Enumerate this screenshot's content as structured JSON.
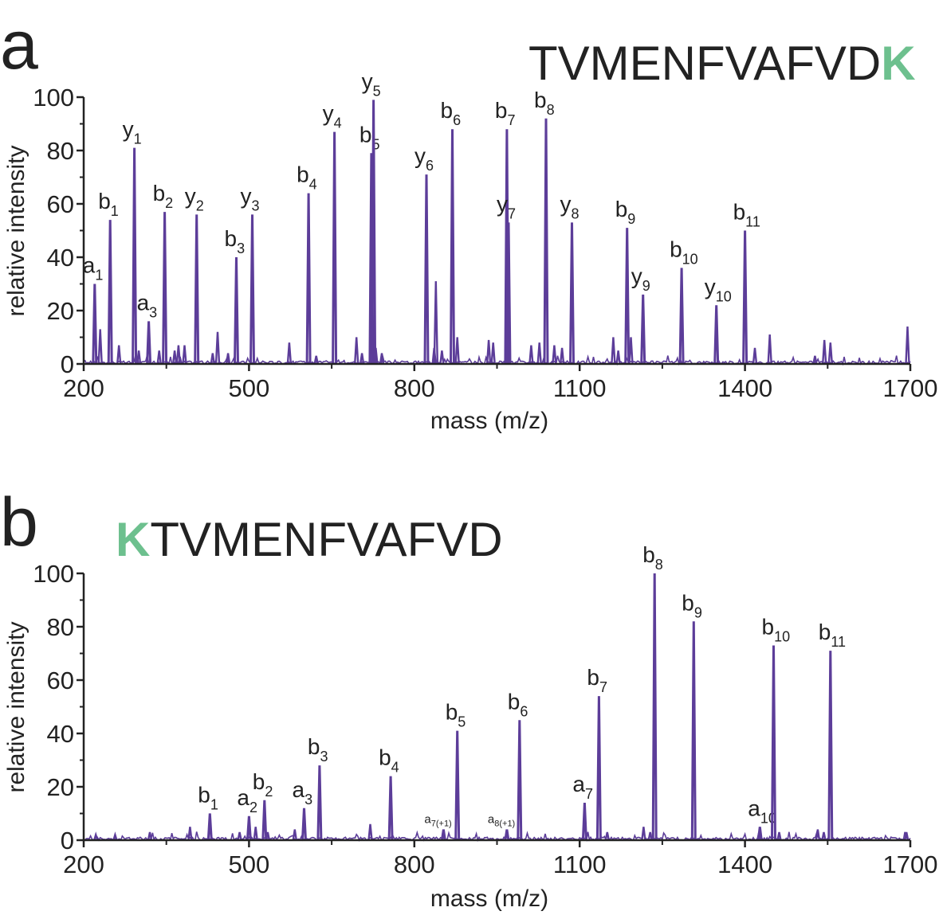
{
  "chart_data": [
    {
      "panel_label": "a",
      "type": "line",
      "peptide_sequence": {
        "prefix": "TVMENFVAFVD",
        "highlight": "K",
        "suffix": ""
      },
      "xlabel": "mass (m/z)",
      "ylabel": "relative intensity",
      "xlim": [
        200,
        1700
      ],
      "ylim": [
        0,
        100
      ],
      "x_ticks": [
        "200",
        "500",
        "800",
        "1100",
        "1400",
        "1700"
      ],
      "y_ticks": [
        "0",
        "20",
        "40",
        "60",
        "80",
        "100"
      ],
      "series_color": "#5c3d99",
      "highlight_color": "#6dc08e",
      "labeled_peaks": [
        {
          "ion": "a",
          "sub": "1",
          "x": 220,
          "y": 30
        },
        {
          "ion": "b",
          "sub": "1",
          "x": 248,
          "y": 54
        },
        {
          "ion": "y",
          "sub": "1",
          "x": 292,
          "y": 81
        },
        {
          "ion": "a",
          "sub": "3",
          "x": 318,
          "y": 16
        },
        {
          "ion": "b",
          "sub": "2",
          "x": 347,
          "y": 57
        },
        {
          "ion": "y",
          "sub": "2",
          "x": 405,
          "y": 56
        },
        {
          "ion": "b",
          "sub": "3",
          "x": 477,
          "y": 40
        },
        {
          "ion": "y",
          "sub": "3",
          "x": 506,
          "y": 56
        },
        {
          "ion": "b",
          "sub": "4",
          "x": 608,
          "y": 64
        },
        {
          "ion": "y",
          "sub": "4",
          "x": 655,
          "y": 87
        },
        {
          "ion": "b",
          "sub": "5",
          "x": 722,
          "y": 79
        },
        {
          "ion": "y",
          "sub": "5",
          "x": 726,
          "y": 99
        },
        {
          "ion": "y",
          "sub": "6",
          "x": 822,
          "y": 71
        },
        {
          "ion": "b",
          "sub": "6",
          "x": 869,
          "y": 88
        },
        {
          "ion": "b",
          "sub": "7",
          "x": 968,
          "y": 88
        },
        {
          "ion": "y",
          "sub": "7",
          "x": 971,
          "y": 53
        },
        {
          "ion": "b",
          "sub": "8",
          "x": 1039,
          "y": 92
        },
        {
          "ion": "y",
          "sub": "8",
          "x": 1086,
          "y": 53
        },
        {
          "ion": "b",
          "sub": "9",
          "x": 1186,
          "y": 51
        },
        {
          "ion": "y",
          "sub": "9",
          "x": 1215,
          "y": 26
        },
        {
          "ion": "b",
          "sub": "10",
          "x": 1285,
          "y": 36
        },
        {
          "ion": "y",
          "sub": "10",
          "x": 1348,
          "y": 22
        },
        {
          "ion": "b",
          "sub": "11",
          "x": 1400,
          "y": 50
        }
      ],
      "unlabeled_peaks": [
        {
          "x": 230,
          "y": 13
        },
        {
          "x": 264,
          "y": 7
        },
        {
          "x": 300,
          "y": 5
        },
        {
          "x": 337,
          "y": 5
        },
        {
          "x": 365,
          "y": 5
        },
        {
          "x": 372,
          "y": 7
        },
        {
          "x": 383,
          "y": 7
        },
        {
          "x": 434,
          "y": 4
        },
        {
          "x": 443,
          "y": 12
        },
        {
          "x": 462,
          "y": 4
        },
        {
          "x": 573,
          "y": 8
        },
        {
          "x": 622,
          "y": 3
        },
        {
          "x": 695,
          "y": 10
        },
        {
          "x": 705,
          "y": 4
        },
        {
          "x": 730,
          "y": 6
        },
        {
          "x": 741,
          "y": 4
        },
        {
          "x": 836,
          "y": 6
        },
        {
          "x": 839,
          "y": 31
        },
        {
          "x": 850,
          "y": 5
        },
        {
          "x": 878,
          "y": 10
        },
        {
          "x": 935,
          "y": 9
        },
        {
          "x": 943,
          "y": 8
        },
        {
          "x": 1012,
          "y": 7
        },
        {
          "x": 1027,
          "y": 8
        },
        {
          "x": 1054,
          "y": 7
        },
        {
          "x": 1068,
          "y": 6
        },
        {
          "x": 1161,
          "y": 10
        },
        {
          "x": 1170,
          "y": 5
        },
        {
          "x": 1193,
          "y": 10
        },
        {
          "x": 1418,
          "y": 6
        },
        {
          "x": 1445,
          "y": 11
        },
        {
          "x": 1527,
          "y": 3
        },
        {
          "x": 1544,
          "y": 9
        },
        {
          "x": 1555,
          "y": 8
        },
        {
          "x": 1695,
          "y": 14
        }
      ]
    },
    {
      "panel_label": "b",
      "type": "line",
      "peptide_sequence": {
        "prefix": "",
        "highlight": "K",
        "suffix": "TVMENFVAFVD"
      },
      "xlabel": "mass (m/z)",
      "ylabel": "relative intensity",
      "xlim": [
        200,
        1700
      ],
      "ylim": [
        0,
        100
      ],
      "x_ticks": [
        "200",
        "500",
        "800",
        "1100",
        "1400",
        "1700"
      ],
      "y_ticks": [
        "0",
        "20",
        "40",
        "60",
        "80",
        "100"
      ],
      "series_color": "#5c3d99",
      "highlight_color": "#6dc08e",
      "labeled_peaks": [
        {
          "ion": "b",
          "sub": "1",
          "x": 429,
          "y": 10
        },
        {
          "ion": "a",
          "sub": "2",
          "x": 500,
          "y": 9
        },
        {
          "ion": "b",
          "sub": "2",
          "x": 528,
          "y": 15
        },
        {
          "ion": "a",
          "sub": "3",
          "x": 600,
          "y": 12
        },
        {
          "ion": "b",
          "sub": "3",
          "x": 628,
          "y": 28
        },
        {
          "ion": "b",
          "sub": "4",
          "x": 757,
          "y": 24
        },
        {
          "ion": "a",
          "sub": "7(+1)",
          "x": 853,
          "y": 4
        },
        {
          "ion": "b",
          "sub": "5",
          "x": 878,
          "y": 41
        },
        {
          "ion": "a",
          "sub": "8(+1)",
          "x": 968,
          "y": 4
        },
        {
          "ion": "b",
          "sub": "6",
          "x": 991,
          "y": 45
        },
        {
          "ion": "a",
          "sub": "7",
          "x": 1109,
          "y": 14
        },
        {
          "ion": "b",
          "sub": "7",
          "x": 1135,
          "y": 54
        },
        {
          "ion": "b",
          "sub": "8",
          "x": 1236,
          "y": 100
        },
        {
          "ion": "b",
          "sub": "9",
          "x": 1307,
          "y": 82
        },
        {
          "ion": "a",
          "sub": "10",
          "x": 1427,
          "y": 5
        },
        {
          "ion": "b",
          "sub": "10",
          "x": 1452,
          "y": 73
        },
        {
          "ion": "b",
          "sub": "11",
          "x": 1555,
          "y": 71
        }
      ],
      "unlabeled_peaks": [
        {
          "x": 222,
          "y": 2
        },
        {
          "x": 257,
          "y": 2
        },
        {
          "x": 320,
          "y": 3
        },
        {
          "x": 393,
          "y": 5
        },
        {
          "x": 483,
          "y": 3
        },
        {
          "x": 512,
          "y": 5
        },
        {
          "x": 534,
          "y": 3
        },
        {
          "x": 583,
          "y": 4
        },
        {
          "x": 720,
          "y": 6
        },
        {
          "x": 1150,
          "y": 3
        },
        {
          "x": 1216,
          "y": 5
        },
        {
          "x": 1228,
          "y": 3
        },
        {
          "x": 1462,
          "y": 3
        },
        {
          "x": 1532,
          "y": 4
        },
        {
          "x": 1543,
          "y": 3
        },
        {
          "x": 1693,
          "y": 3
        }
      ]
    }
  ]
}
